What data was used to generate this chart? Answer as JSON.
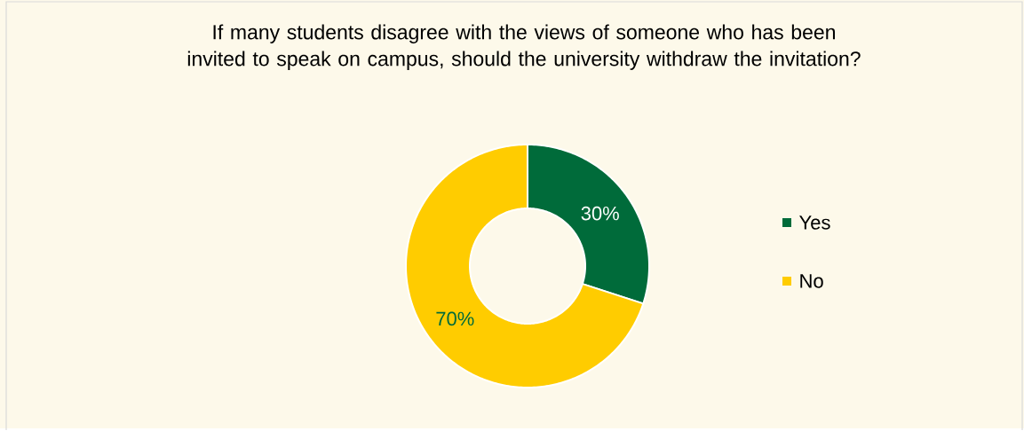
{
  "chart_data": {
    "type": "donut",
    "title": "If many students disagree with the views of someone who has been invited to speak on campus, should the university withdraw the invitation?",
    "categories": [
      "Yes",
      "No"
    ],
    "values": [
      30,
      70
    ],
    "colors": [
      "#006b3a",
      "#ffcc00"
    ],
    "value_labels": [
      "30%",
      "70%"
    ],
    "legend": "right"
  }
}
